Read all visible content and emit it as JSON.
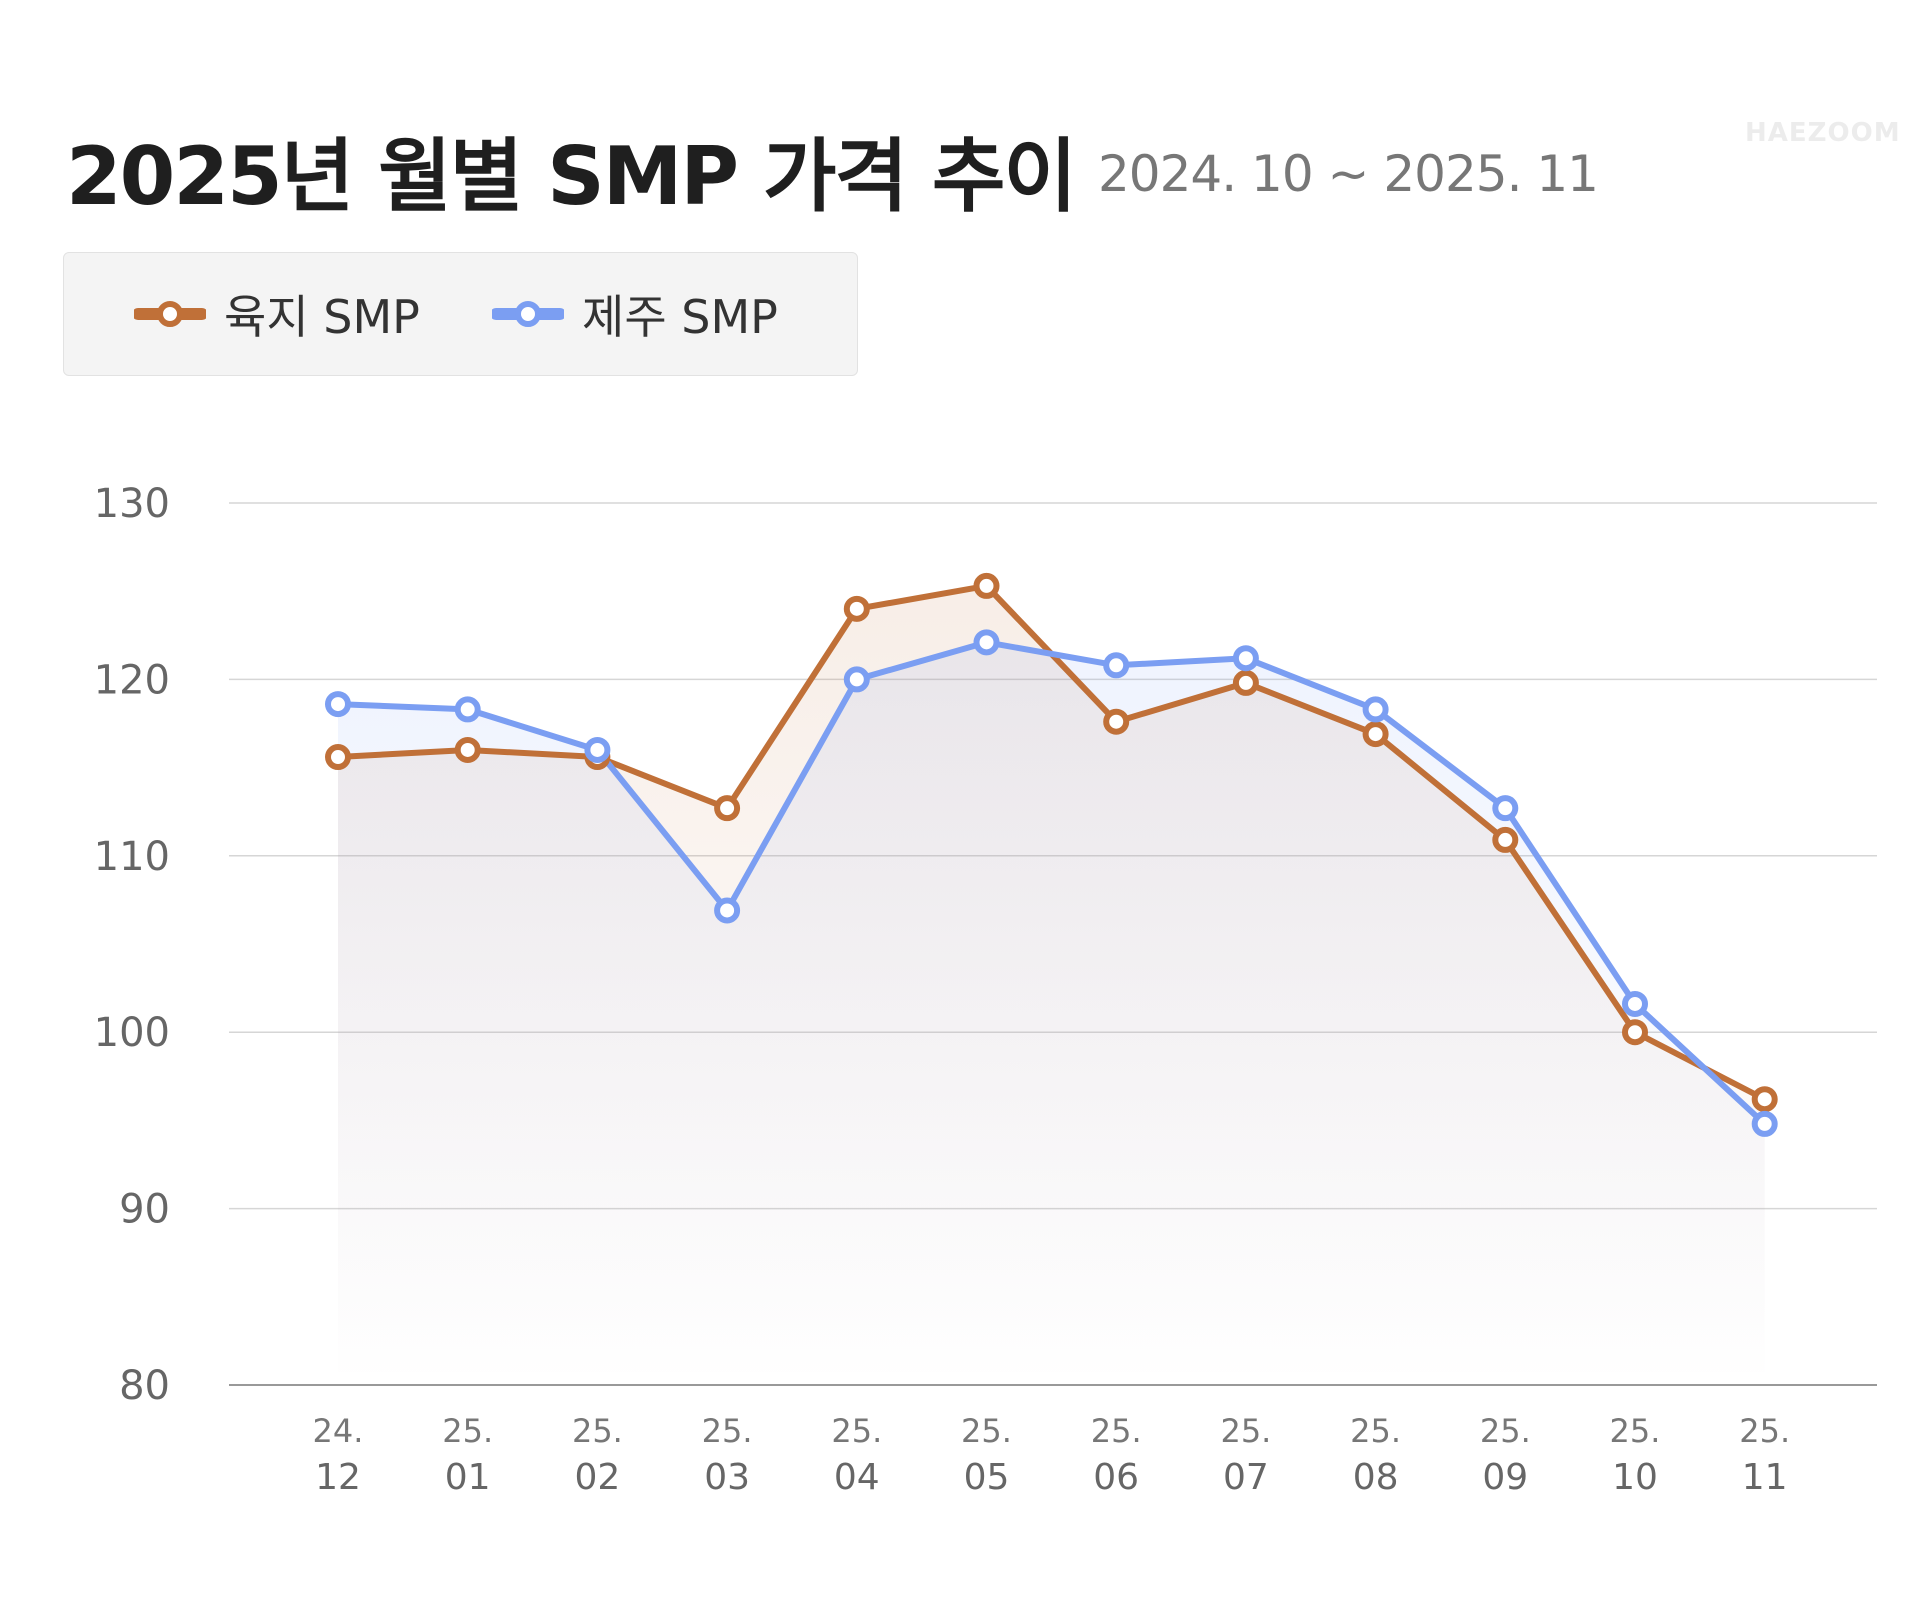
{
  "header": {
    "title": "2025년 월별 SMP 가격 추이",
    "subtitle": "2024. 10 ~ 2025. 11",
    "watermark": "HAEZOOM"
  },
  "chart_data": {
    "type": "line",
    "title": "2025년 월별 SMP 가격 추이",
    "subtitle": "2024. 10 ~ 2025. 11",
    "categories": [
      [
        "24.",
        "12"
      ],
      [
        "25.",
        "01"
      ],
      [
        "25.",
        "02"
      ],
      [
        "25.",
        "03"
      ],
      [
        "25.",
        "04"
      ],
      [
        "25.",
        "05"
      ],
      [
        "25.",
        "06"
      ],
      [
        "25.",
        "07"
      ],
      [
        "25.",
        "08"
      ],
      [
        "25.",
        "09"
      ],
      [
        "25.",
        "10"
      ],
      [
        "25.",
        "11"
      ]
    ],
    "series": [
      {
        "name": "육지 SMP",
        "color": "#c07038",
        "values": [
          115.6,
          116.0,
          115.6,
          112.7,
          124.0,
          125.3,
          117.6,
          119.8,
          116.9,
          110.9,
          100.0,
          96.2
        ]
      },
      {
        "name": "제주 SMP",
        "color": "#7b9ef2",
        "values": [
          118.6,
          118.3,
          116.0,
          106.9,
          120.0,
          122.1,
          120.8,
          121.2,
          118.3,
          112.7,
          101.6,
          94.8
        ]
      }
    ],
    "ylim": [
      80,
      130
    ],
    "yticks": [
      80,
      90,
      100,
      110,
      120,
      130
    ],
    "grid": true,
    "legend": "top-left",
    "xlabel": "",
    "ylabel": ""
  }
}
